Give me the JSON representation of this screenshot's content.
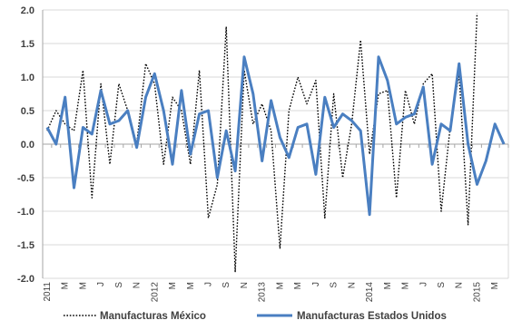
{
  "chart_data": {
    "type": "line",
    "title": "",
    "xlabel": "",
    "ylabel": "",
    "ylim": [
      -2.0,
      2.0
    ],
    "ytick_step": 0.5,
    "grid": "horizontal",
    "legend_position": "bottom",
    "x_labels": [
      "2011",
      "M",
      "M",
      "J",
      "S",
      "N",
      "2012",
      "M",
      "M",
      "J",
      "S",
      "N",
      "2013",
      "M",
      "M",
      "J",
      "S",
      "N",
      "2014",
      "M",
      "M",
      "J",
      "S",
      "N",
      "2015",
      "M"
    ],
    "series": [
      {
        "name": "Manufacturas México",
        "style": "dotted",
        "color": "#000000",
        "values": [
          0.2,
          0.5,
          0.3,
          0.2,
          1.1,
          -0.8,
          0.9,
          -0.3,
          0.9,
          0.5,
          0.0,
          1.2,
          0.9,
          -0.3,
          0.7,
          0.5,
          -0.3,
          1.1,
          -1.1,
          -0.6,
          1.75,
          -1.9,
          1.1,
          0.3,
          0.6,
          0.2,
          -1.55,
          0.5,
          1.0,
          0.6,
          0.95,
          -1.1,
          0.75,
          -0.5,
          0.3,
          1.55,
          -0.15,
          0.75,
          0.8,
          -0.8,
          0.8,
          0.3,
          0.9,
          1.05,
          -1.0,
          0.25,
          1.05,
          -1.2,
          1.95
        ]
      },
      {
        "name": "Manufacturas Estados Unidos",
        "style": "solid",
        "color": "#4a7fc1",
        "values": [
          0.25,
          0.0,
          0.7,
          -0.65,
          0.25,
          0.15,
          0.8,
          0.3,
          0.35,
          0.5,
          -0.05,
          0.7,
          1.05,
          0.5,
          -0.3,
          0.8,
          -0.15,
          0.45,
          0.5,
          -0.5,
          0.2,
          -0.4,
          1.3,
          0.75,
          -0.25,
          0.65,
          0.1,
          -0.2,
          0.25,
          0.3,
          -0.45,
          0.7,
          0.25,
          0.45,
          0.35,
          0.2,
          -1.05,
          1.3,
          0.95,
          0.3,
          0.4,
          0.45,
          0.85,
          -0.3,
          0.3,
          0.2,
          1.2,
          0.0,
          -0.6,
          -0.25,
          0.3,
          0.0
        ]
      }
    ],
    "colors": {
      "grid": "#d9d9d9",
      "axis": "#a6a6a6",
      "text": "#404040"
    }
  }
}
